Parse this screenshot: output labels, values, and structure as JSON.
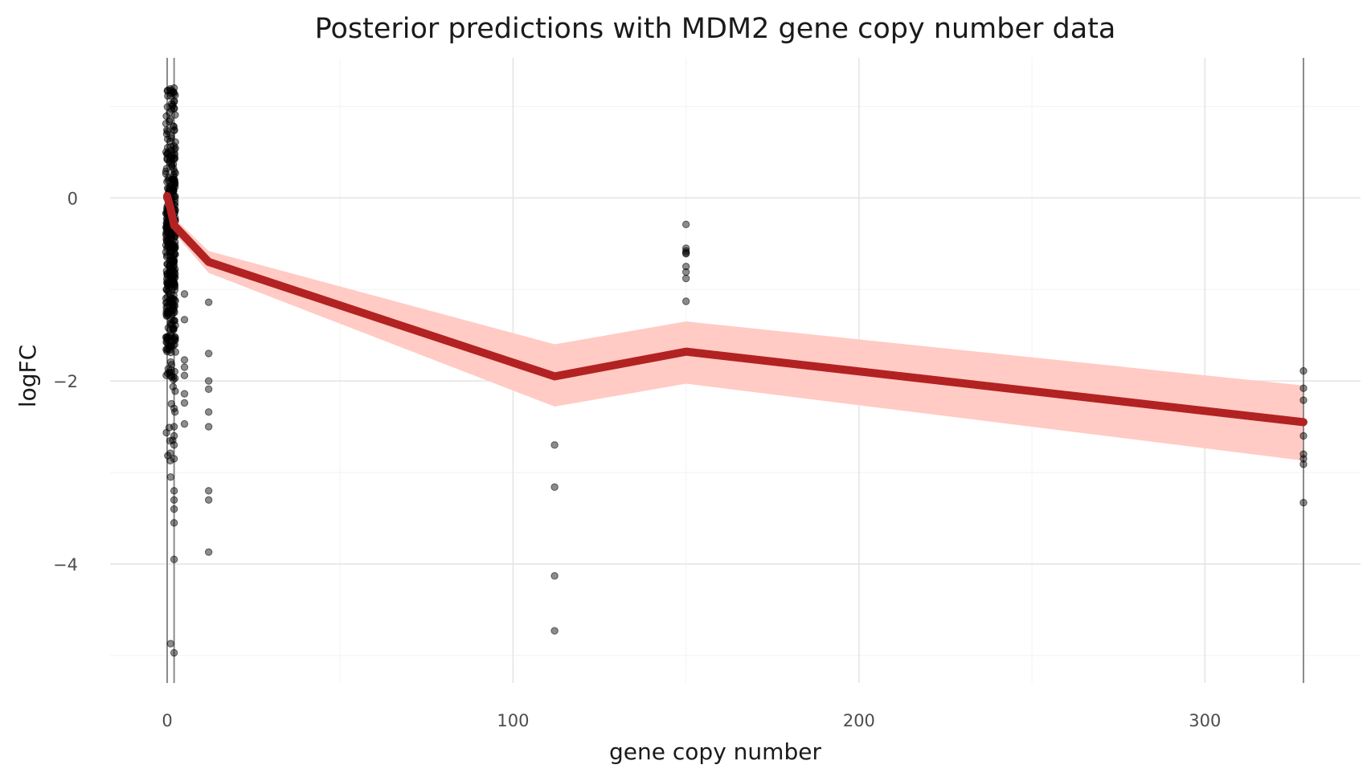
{
  "chart_data": {
    "type": "line",
    "title": "Posterior predictions with MDM2 gene copy number data",
    "xlabel": "gene copy number",
    "ylabel": "logFC",
    "xlim": [
      -16.5,
      345
    ],
    "ylim": [
      -5.3,
      1.53
    ],
    "x_major_ticks": [
      0,
      100,
      200,
      300
    ],
    "x_tick_labels": [
      "0",
      "100",
      "200",
      "300"
    ],
    "x_minor_ticks": [
      50,
      150,
      250
    ],
    "y_major_ticks": [
      0,
      -2,
      -4
    ],
    "y_tick_labels": [
      "0",
      "−2",
      "−4"
    ],
    "y_minor_ticks": [
      1,
      -1,
      -3,
      -5
    ],
    "grid": true,
    "legend": "none",
    "colors": {
      "line": "#b22222",
      "band": "#ffcbc4",
      "points": "#000000",
      "vertical_lines": "#8a8a8a"
    },
    "vertical_lines_x": [
      0,
      2,
      328.5
    ],
    "series": [
      {
        "kind": "line",
        "x": [
          0,
          1,
          2,
          12,
          112,
          150,
          328.5
        ],
        "y": [
          0.02,
          -0.12,
          -0.3,
          -0.7,
          -1.95,
          -1.68,
          -2.45
        ]
      },
      {
        "kind": "ribbon",
        "x": [
          0,
          1,
          2,
          12,
          112,
          150,
          328.5
        ],
        "upper": [
          0.05,
          -0.08,
          -0.22,
          -0.58,
          -1.6,
          -1.35,
          -2.05
        ],
        "lower": [
          -0.02,
          -0.18,
          -0.38,
          -0.82,
          -2.28,
          -2.03,
          -2.87
        ]
      },
      {
        "kind": "scatter",
        "x": [
          5,
          5,
          5,
          5,
          5,
          5,
          5,
          5,
          12,
          12,
          12,
          12,
          12,
          12,
          12,
          12,
          12,
          112,
          112,
          112,
          112,
          150,
          150,
          150,
          150,
          150,
          150,
          150,
          150,
          150,
          328.5,
          328.5,
          328.5,
          328.5,
          328.5,
          328.5,
          328.5,
          328.5,
          1,
          1,
          2,
          2,
          2,
          2,
          2,
          2,
          2,
          2,
          2,
          2,
          2,
          2,
          2
        ],
        "y": [
          -1.05,
          -1.33,
          -1.77,
          -1.85,
          -1.94,
          -2.14,
          -2.24,
          -2.47,
          -1.14,
          -1.7,
          -2.09,
          -2.34,
          -2.5,
          -3.2,
          -3.3,
          -3.87,
          -2.0,
          -2.7,
          -3.16,
          -4.13,
          -4.73,
          -0.29,
          -0.55,
          -0.58,
          -0.61,
          -0.75,
          -0.81,
          -0.88,
          -1.13,
          -0.6,
          -1.89,
          -2.08,
          -2.21,
          -2.6,
          -2.8,
          -2.85,
          -2.91,
          -3.33,
          -4.87,
          -3.05,
          -4.97,
          -3.95,
          -3.55,
          -3.4,
          -3.3,
          -3.2,
          -2.85,
          -2.7,
          -2.6,
          -2.5,
          -2.3,
          1.2,
          1.05
        ]
      }
    ]
  }
}
